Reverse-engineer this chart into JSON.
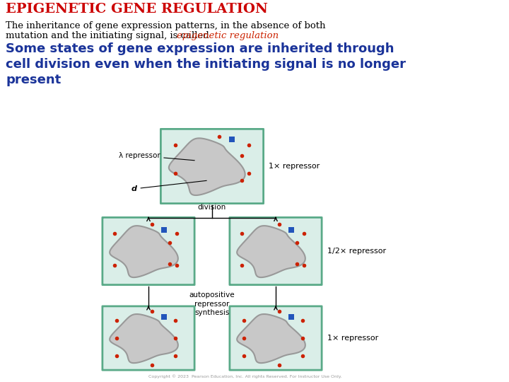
{
  "title": "EPIGENETIC GENE REGULATION",
  "title_color": "#cc0000",
  "subtitle1": "The inheritance of gene expression patterns, in the absence of both",
  "subtitle2_normal": "mutation and the initiating signal, is called ",
  "subtitle2_highlight": "epigenetic regulation",
  "subtitle2_highlight_color": "#cc2200",
  "body_text_line1": "Some states of gene expression are inherited through",
  "body_text_line2": "cell division even when the initiating signal is no longer",
  "body_text_line3": "present",
  "body_text_color": "#1a3399",
  "background_color": "#ffffff",
  "cell_fill": "#daeee8",
  "cell_border": "#5aaa88",
  "nucleus_fill": "#c8c8c8",
  "nucleus_border": "#999999",
  "dot_color": "#cc2200",
  "blue_dot_color": "#2255bb",
  "label_lambda": "λ repressor",
  "label_cl": "d",
  "label_1x_top": "1× repressor",
  "label_half": "1/2× repressor",
  "label_division": "division",
  "label_autopos": "autopositive\nrepressor\nsynthesis",
  "label_1x_bottom": "1× repressor",
  "copyright": "Copyright © 2023  Pearson Education, Inc. All rights Reserved. For Instructor Use Only."
}
